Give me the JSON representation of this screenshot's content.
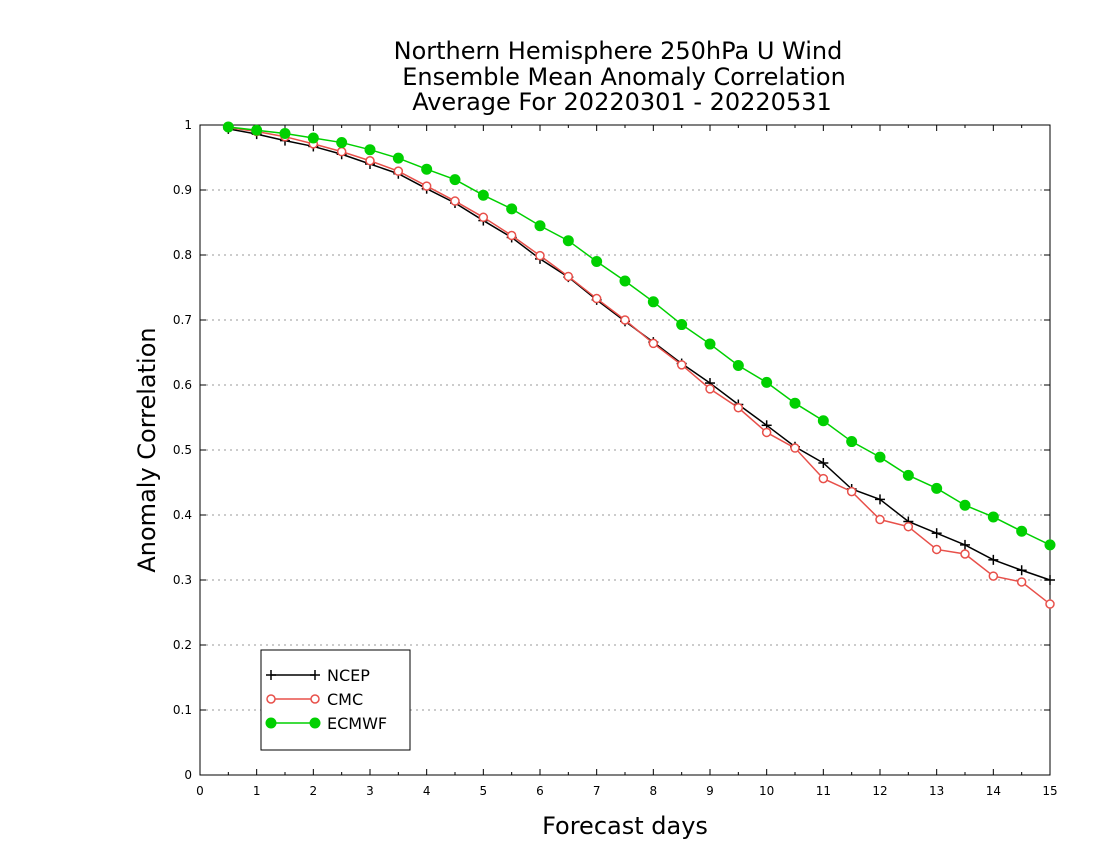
{
  "chart_data": {
    "type": "line",
    "title_lines": [
      "Northern Hemisphere 250hPa U Wind",
      "Ensemble Mean Anomaly Correlation",
      "Average For 20220301 - 20220531"
    ],
    "xlabel": "Forecast days",
    "ylabel": "Anomaly Correlation",
    "xlim": [
      0,
      15
    ],
    "ylim": [
      0,
      1
    ],
    "x_ticks": [
      "0",
      "1",
      "2",
      "3",
      "4",
      "5",
      "6",
      "7",
      "8",
      "9",
      "10",
      "11",
      "12",
      "13",
      "14",
      "15"
    ],
    "y_ticks": [
      "0",
      "0.1",
      "0.2",
      "0.3",
      "0.4",
      "0.5",
      "0.6",
      "0.7",
      "0.8",
      "0.9",
      "1"
    ],
    "grid": "horizontal dotted",
    "legend_position": "bottom-left",
    "x": [
      0.5,
      1,
      1.5,
      2,
      2.5,
      3,
      3.5,
      4,
      4.5,
      5,
      5.5,
      6,
      6.5,
      7,
      7.5,
      8,
      8.5,
      9,
      9.5,
      10,
      10.5,
      11,
      11.5,
      12,
      12.5,
      13,
      13.5,
      14,
      14.5,
      15
    ],
    "series": [
      {
        "name": "NCEP",
        "color": "#000000",
        "marker": "plus",
        "values": [
          0.994,
          0.986,
          0.976,
          0.967,
          0.955,
          0.94,
          0.925,
          0.902,
          0.88,
          0.853,
          0.827,
          0.794,
          0.766,
          0.731,
          0.698,
          0.666,
          0.633,
          0.603,
          0.57,
          0.538,
          0.505,
          0.48,
          0.44,
          0.424,
          0.39,
          0.372,
          0.354,
          0.331,
          0.315,
          0.3
        ]
      },
      {
        "name": "CMC",
        "color": "#e8504a",
        "marker": "open-circle",
        "values": [
          0.996,
          0.99,
          0.982,
          0.971,
          0.959,
          0.945,
          0.929,
          0.906,
          0.883,
          0.858,
          0.83,
          0.799,
          0.767,
          0.733,
          0.7,
          0.664,
          0.631,
          0.594,
          0.565,
          0.527,
          0.503,
          0.456,
          0.436,
          0.393,
          0.382,
          0.347,
          0.34,
          0.306,
          0.297,
          0.263
        ]
      },
      {
        "name": "ECMWF",
        "color": "#00d000",
        "marker": "filled-circle",
        "values": [
          0.997,
          0.992,
          0.987,
          0.98,
          0.973,
          0.962,
          0.949,
          0.932,
          0.916,
          0.892,
          0.871,
          0.845,
          0.822,
          0.79,
          0.76,
          0.728,
          0.693,
          0.663,
          0.63,
          0.604,
          0.572,
          0.545,
          0.513,
          0.489,
          0.461,
          0.441,
          0.415,
          0.397,
          0.375,
          0.354
        ]
      }
    ]
  }
}
